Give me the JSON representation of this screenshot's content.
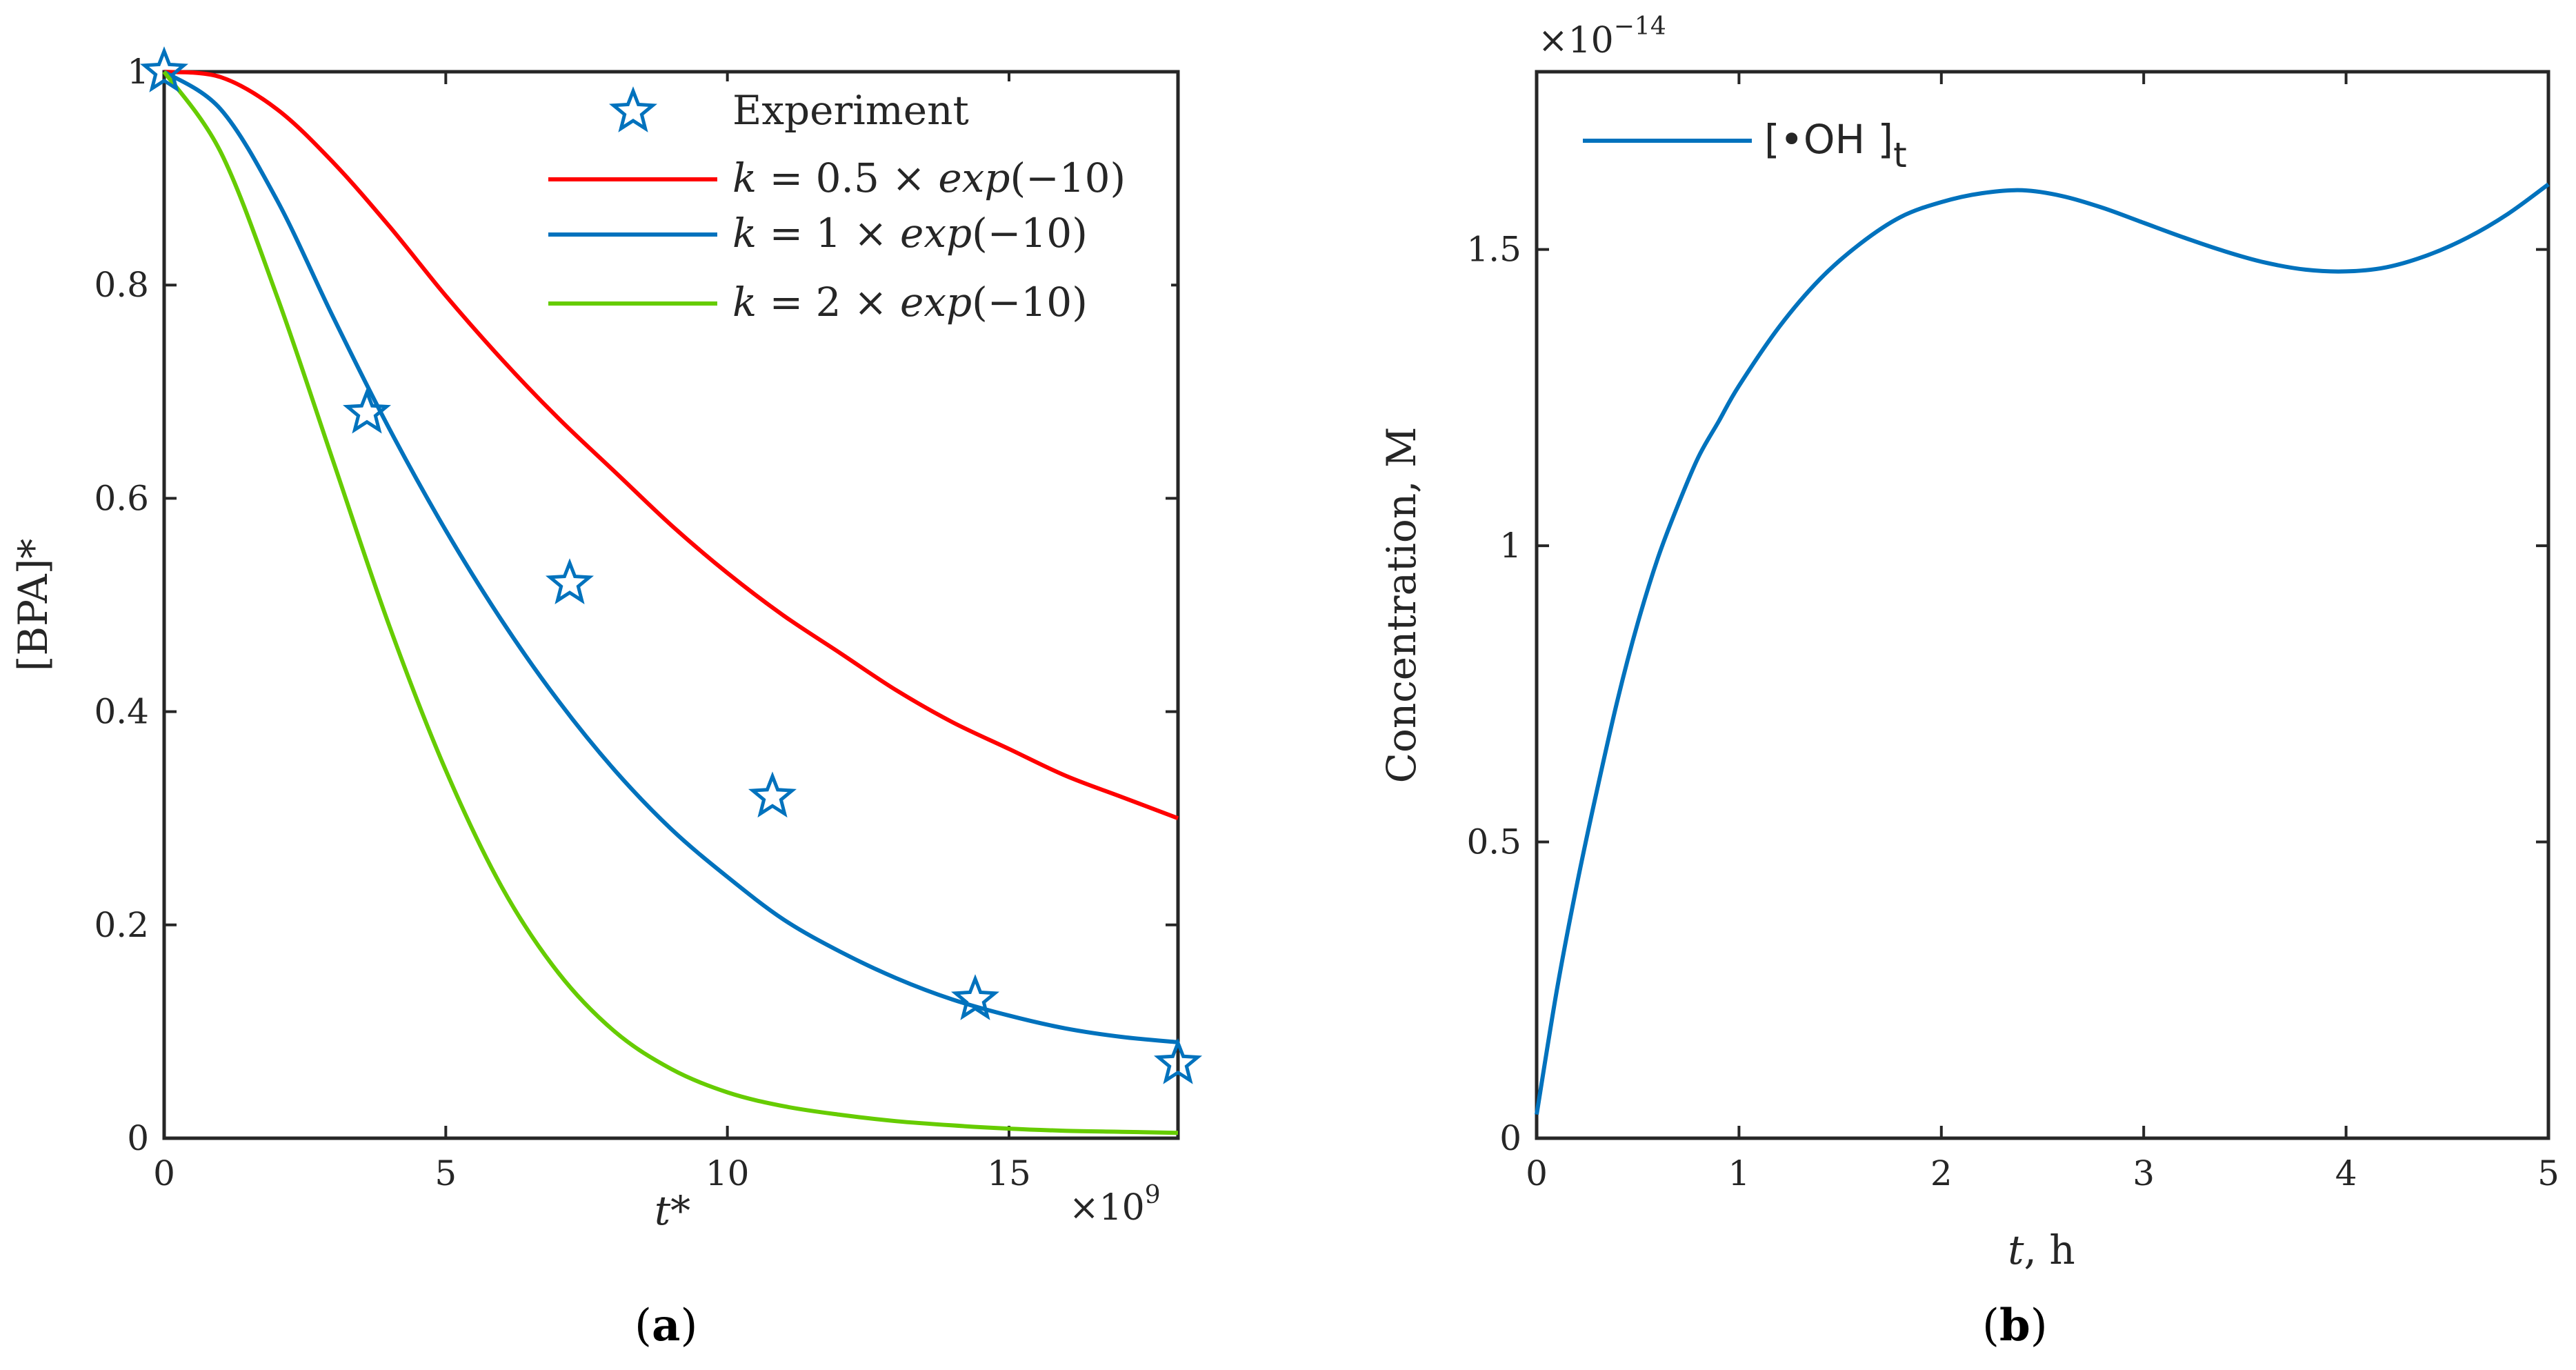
{
  "figure": {
    "panel_labels": [
      {
        "open": "(",
        "letter": "a",
        "close": ")"
      },
      {
        "open": "(",
        "letter": "b",
        "close": ")"
      }
    ]
  },
  "chart_data": [
    {
      "type": "line",
      "panel": "a",
      "xlabel": "t*",
      "ylabel": "[BPA]*",
      "x_multiplier": {
        "base": "×10",
        "exponent": "9"
      },
      "xlim": [
        0,
        18
      ],
      "ylim": [
        0,
        1
      ],
      "xticks": [
        0,
        5,
        10,
        15
      ],
      "xtick_labels": [
        "0",
        "5",
        "10",
        "15"
      ],
      "yticks": [
        0,
        0.2,
        0.4,
        0.6,
        0.8,
        1
      ],
      "ytick_labels": [
        "0",
        "0.2",
        "0.4",
        "0.6",
        "0.8",
        "1"
      ],
      "grid": false,
      "legend_position": "top-right",
      "series": [
        {
          "name": "Experiment",
          "kind": "markers",
          "marker": "star",
          "color": "#0072BD",
          "x": [
            0,
            3.6,
            7.2,
            10.8,
            14.4,
            18.0
          ],
          "y": [
            1.0,
            0.68,
            0.52,
            0.32,
            0.13,
            0.07
          ]
        },
        {
          "name": "k = 0.5 × exp(−10)",
          "legend": {
            "k": "k",
            "eq": " = 0.5 × ",
            "fn": "exp",
            "arg": "(−10)"
          },
          "kind": "line",
          "color": "#FF0000",
          "x": [
            0,
            1,
            2,
            3,
            4,
            5,
            6,
            7,
            8,
            9,
            10,
            11,
            12,
            13,
            14,
            15,
            16,
            17,
            18
          ],
          "y": [
            1.0,
            0.995,
            0.965,
            0.915,
            0.855,
            0.79,
            0.73,
            0.675,
            0.625,
            0.575,
            0.53,
            0.49,
            0.455,
            0.42,
            0.39,
            0.365,
            0.34,
            0.32,
            0.3
          ]
        },
        {
          "name": "k = 1 × exp(−10)",
          "legend": {
            "k": "k",
            "eq": " = 1 × ",
            "fn": "exp",
            "arg": "(−10)"
          },
          "kind": "line",
          "color": "#0072BD",
          "x": [
            0,
            1,
            2,
            3,
            4,
            5,
            6,
            7,
            8,
            9,
            10,
            11,
            12,
            13,
            14,
            15,
            16,
            17,
            18
          ],
          "y": [
            1.0,
            0.965,
            0.88,
            0.77,
            0.665,
            0.57,
            0.485,
            0.41,
            0.345,
            0.29,
            0.245,
            0.205,
            0.175,
            0.15,
            0.13,
            0.115,
            0.103,
            0.095,
            0.09
          ]
        },
        {
          "name": "k = 2 × exp(−10)",
          "legend": {
            "k": "k",
            "eq": " = 2 × ",
            "fn": "exp",
            "arg": "(−10)"
          },
          "kind": "line",
          "color": "#66CC00",
          "x": [
            0,
            1,
            2,
            3,
            4,
            5,
            6,
            7,
            8,
            9,
            10,
            11,
            12,
            13,
            14,
            15,
            16,
            17,
            18
          ],
          "y": [
            1.0,
            0.925,
            0.79,
            0.635,
            0.48,
            0.345,
            0.235,
            0.155,
            0.1,
            0.065,
            0.043,
            0.03,
            0.022,
            0.016,
            0.012,
            0.009,
            0.007,
            0.006,
            0.005
          ]
        }
      ]
    },
    {
      "type": "line",
      "panel": "b",
      "xlabel": {
        "t": "t",
        "rest": ", h"
      },
      "ylabel": "Concentration, M",
      "y_multiplier": {
        "base": "×10",
        "exponent": "−14"
      },
      "xlim": [
        0,
        5
      ],
      "ylim": [
        0,
        1.8
      ],
      "xticks": [
        0,
        1,
        2,
        3,
        4,
        5
      ],
      "xtick_labels": [
        "0",
        "1",
        "2",
        "3",
        "4",
        "5"
      ],
      "yticks": [
        0,
        0.5,
        1,
        1.5
      ],
      "ytick_labels": [
        "0",
        "0.5",
        "1",
        "1.5"
      ],
      "grid": false,
      "legend_position": "top-left",
      "series": [
        {
          "name": "[•OH ]t",
          "legend": {
            "main": "[•OH ]",
            "sub": "t"
          },
          "kind": "line",
          "color": "#0072BD",
          "x": [
            0,
            0.1,
            0.2,
            0.3,
            0.4,
            0.5,
            0.6,
            0.7,
            0.8,
            0.9,
            1.0,
            1.2,
            1.4,
            1.6,
            1.8,
            2.0,
            2.2,
            2.4,
            2.6,
            2.8,
            3.0,
            3.2,
            3.4,
            3.6,
            3.8,
            4.0,
            4.2,
            4.4,
            4.6,
            4.8,
            5.0
          ],
          "y": [
            0.04,
            0.25,
            0.43,
            0.59,
            0.74,
            0.87,
            0.98,
            1.07,
            1.15,
            1.21,
            1.27,
            1.37,
            1.45,
            1.51,
            1.555,
            1.58,
            1.595,
            1.6,
            1.59,
            1.57,
            1.545,
            1.52,
            1.497,
            1.478,
            1.466,
            1.463,
            1.47,
            1.49,
            1.52,
            1.56,
            1.61
          ]
        }
      ]
    }
  ]
}
